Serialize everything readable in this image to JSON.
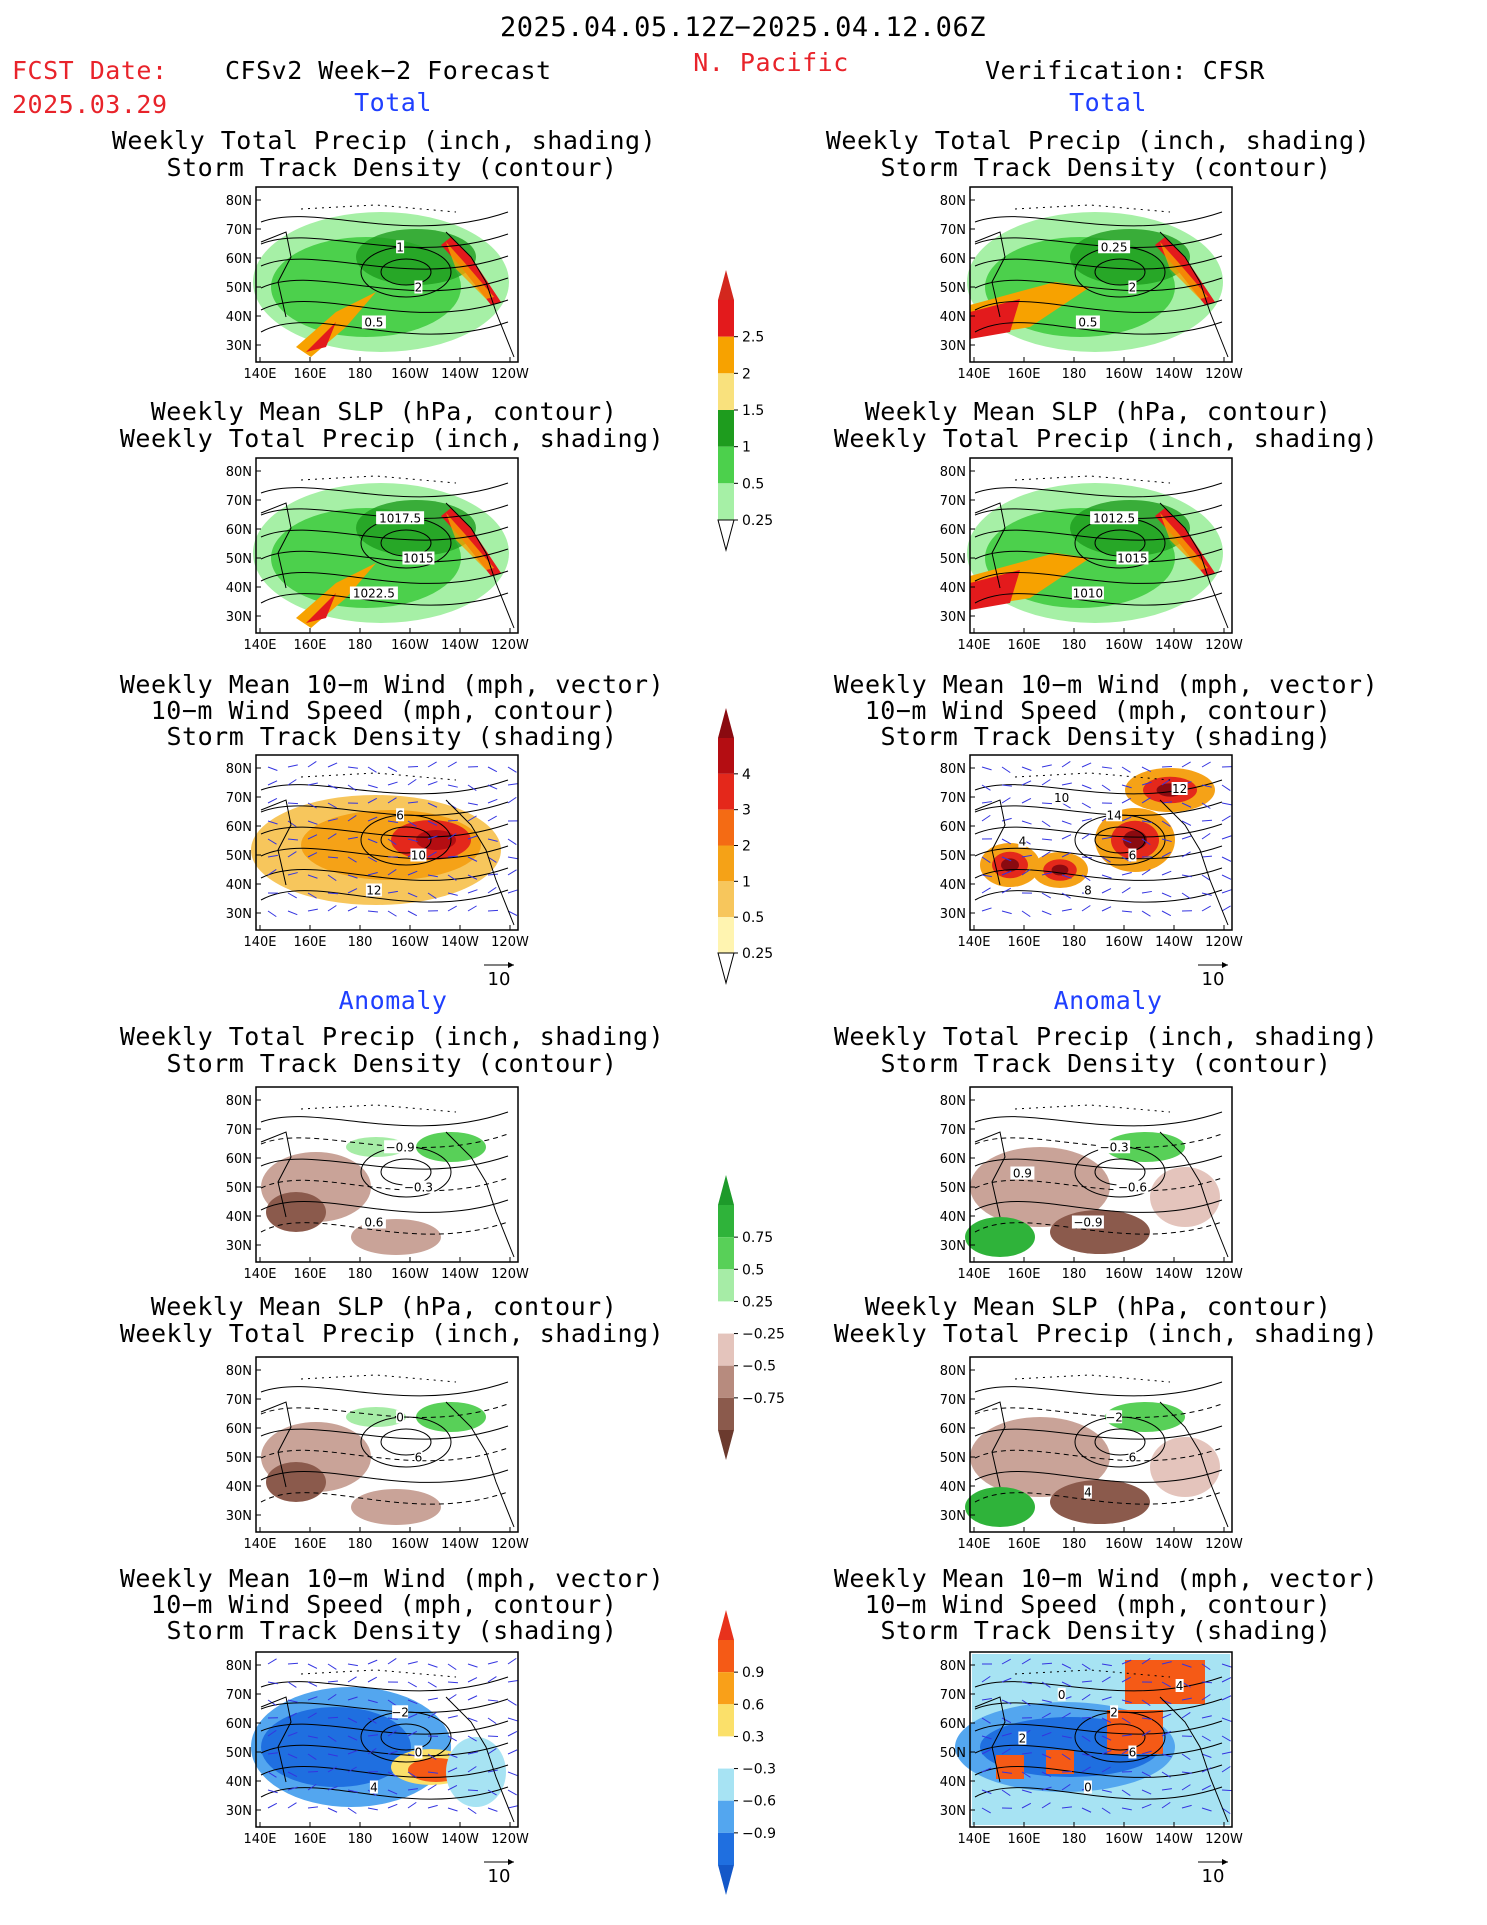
{
  "header": {
    "date_range": "2025.04.05.12Z−2025.04.12.06Z",
    "fcst_date_label": "FCST Date:",
    "fcst_date": "2025.03.29",
    "left_title": "CFSv2 Week−2 Forecast",
    "region": "N. Pacific",
    "right_title": "Verification: CFSR"
  },
  "sections": {
    "total_label": "Total",
    "anomaly_label": "Anomaly"
  },
  "panel_titles": {
    "precip_storm": [
      "Weekly Total Precip (inch, shading)",
      "Storm Track Density (contour)"
    ],
    "slp_precip": [
      "Weekly Mean SLP (hPa, contour)",
      "Weekly Total Precip (inch, shading)"
    ],
    "wind_storm": [
      "Weekly Mean 10−m Wind (mph, vector)",
      "10−m Wind Speed (mph, contour)",
      "Storm Track Density (shading)"
    ]
  },
  "axes": {
    "x_ticks": [
      "140E",
      "160E",
      "180",
      "160W",
      "140W",
      "120W"
    ],
    "y_ticks": [
      "80N",
      "70N",
      "60N",
      "50N",
      "40N",
      "30N"
    ]
  },
  "vector_ref": "10",
  "colorbars": {
    "precip_total": {
      "labels": [
        "2.5",
        "2",
        "1.5",
        "1",
        "0.5",
        "0.25"
      ],
      "colors": [
        "#e31a1c",
        "#f7a200",
        "#f9e17d",
        "#1e9c1e",
        "#4cd04c",
        "#a6f0a6"
      ],
      "top_color": "#d3271e"
    },
    "storm_total": {
      "labels": [
        "4",
        "3",
        "2",
        "1",
        "0.5",
        "0.25"
      ],
      "colors": [
        "#b40d12",
        "#e4281b",
        "#f46b14",
        "#f5a217",
        "#f7c65c",
        "#fff4b0"
      ],
      "top_color": "#8a0a10"
    },
    "precip_anom": {
      "labels": [
        "0.75",
        "0.5",
        "0.25",
        "−0.25",
        "−0.5",
        "−0.75"
      ],
      "colors": [
        "#2fb33a",
        "#58d058",
        "#a6eca6",
        "#ffffff",
        "#e4c4bc",
        "#b78b7e",
        "#8b5a4c"
      ],
      "top_color": "#1d9a2a",
      "bottom_color": "#6b3a2e"
    },
    "storm_anom": {
      "labels": [
        "0.9",
        "0.6",
        "0.3",
        "−0.3",
        "−0.6",
        "−0.9"
      ],
      "colors": [
        "#f55a16",
        "#f9a019",
        "#fbe06a",
        "#ffffff",
        "#a7e3f3",
        "#53a6ef",
        "#1f6fe0"
      ],
      "top_color": "#e8321c",
      "bottom_color": "#1458c8"
    }
  },
  "maps": {
    "left": {
      "r1": {
        "contour_labels": [
          "1",
          "2",
          "0.5"
        ],
        "shade": "precip"
      },
      "r2": {
        "contour_labels": [
          "1017.5",
          "1015",
          "1022.5"
        ],
        "shade": "precip"
      },
      "r3": {
        "contour_labels": [
          "6",
          "10",
          "12"
        ],
        "shade": "storm"
      },
      "r4": {
        "contour_labels": [
          "−0.9",
          "−0.3",
          "0.6"
        ],
        "shade": "precip_anom"
      },
      "r5": {
        "contour_labels": [
          "0",
          "6"
        ],
        "shade": "precip_anom"
      },
      "r6": {
        "contour_labels": [
          "−2",
          "0",
          "4"
        ],
        "shade": "storm_anom"
      }
    },
    "right": {
      "r1": {
        "contour_labels": [
          "0.25",
          "2",
          "0.5"
        ],
        "shade": "precip"
      },
      "r2": {
        "contour_labels": [
          "1012.5",
          "1015",
          "1010"
        ],
        "shade": "precip"
      },
      "r3": {
        "contour_labels": [
          "14",
          "6",
          "8",
          "4",
          "12",
          "10"
        ],
        "shade": "storm"
      },
      "r4": {
        "contour_labels": [
          "−0.3",
          "−0.6",
          "−0.9",
          "0.9"
        ],
        "shade": "precip_anom"
      },
      "r5": {
        "contour_labels": [
          "−2",
          "6",
          "4"
        ],
        "shade": "precip_anom"
      },
      "r6": {
        "contour_labels": [
          "2",
          "6",
          "0",
          "2",
          "4",
          "0"
        ],
        "shade": "storm_anom"
      }
    }
  },
  "chart_data": {
    "type": "heatmap",
    "title": "2025.04.05.12Z−2025.04.12.06Z",
    "subtitle": "N. Pacific",
    "x_ticks": [
      "140E",
      "160E",
      "180",
      "160W",
      "140W",
      "120W"
    ],
    "y_ticks": [
      "80N",
      "70N",
      "60N",
      "50N",
      "40N",
      "30N"
    ],
    "precip_scale_inch": [
      0.25,
      0.5,
      1,
      1.5,
      2,
      2.5
    ],
    "storm_density_scale": [
      0.25,
      0.5,
      1,
      2,
      3,
      4
    ],
    "precip_anomaly_scale_inch": [
      -0.75,
      -0.5,
      -0.25,
      0.25,
      0.5,
      0.75
    ],
    "storm_density_anomaly_scale": [
      -0.9,
      -0.6,
      -0.3,
      0.3,
      0.6,
      0.9
    ]
  }
}
